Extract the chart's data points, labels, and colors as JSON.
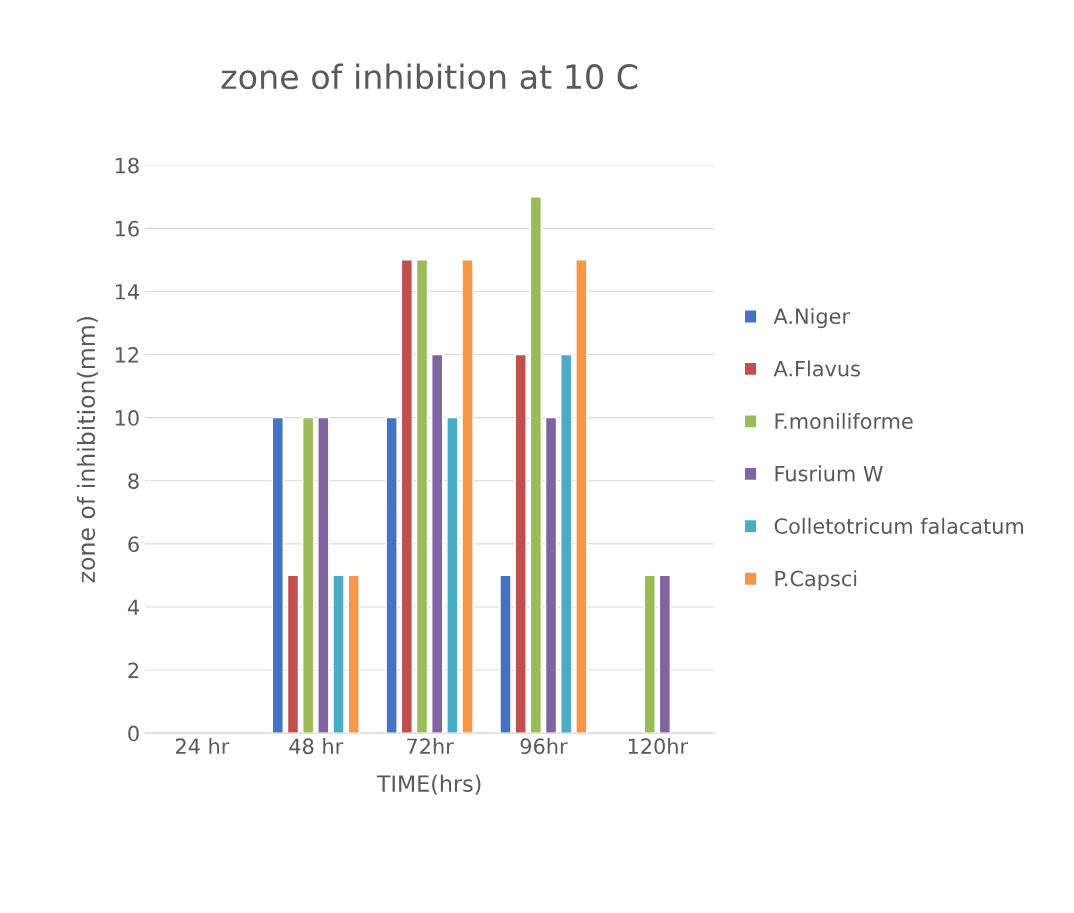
{
  "chart_data": {
    "type": "bar",
    "title": "zone of inhibition at 10 C",
    "xlabel": "TIME(hrs)",
    "ylabel": "zone of inhibition(mm)",
    "categories": [
      "24 hr",
      "48 hr",
      "72hr",
      "96hr",
      "120hr"
    ],
    "series": [
      {
        "name": "A.Niger",
        "color": "#4472c4",
        "values": [
          0,
          10,
          10,
          5,
          0
        ]
      },
      {
        "name": "A.Flavus",
        "color": "#c0504d",
        "values": [
          0,
          5,
          15,
          12,
          0
        ]
      },
      {
        "name": "F.moniliforme",
        "color": "#9bbb59",
        "values": [
          0,
          10,
          15,
          17,
          5
        ]
      },
      {
        "name": "Fusrium W",
        "color": "#8064a2",
        "values": [
          0,
          10,
          12,
          10,
          5
        ]
      },
      {
        "name": "Colletotricum falacatum",
        "color": "#4bacc6",
        "values": [
          0,
          5,
          10,
          12,
          0
        ]
      },
      {
        "name": "P.Capsci",
        "color": "#f79646",
        "values": [
          0,
          5,
          15,
          15,
          0
        ]
      }
    ],
    "ylim": [
      0,
      18
    ],
    "yticks": [
      0,
      2,
      4,
      6,
      8,
      10,
      12,
      14,
      16,
      18
    ],
    "grid": "y",
    "legend": "right"
  }
}
